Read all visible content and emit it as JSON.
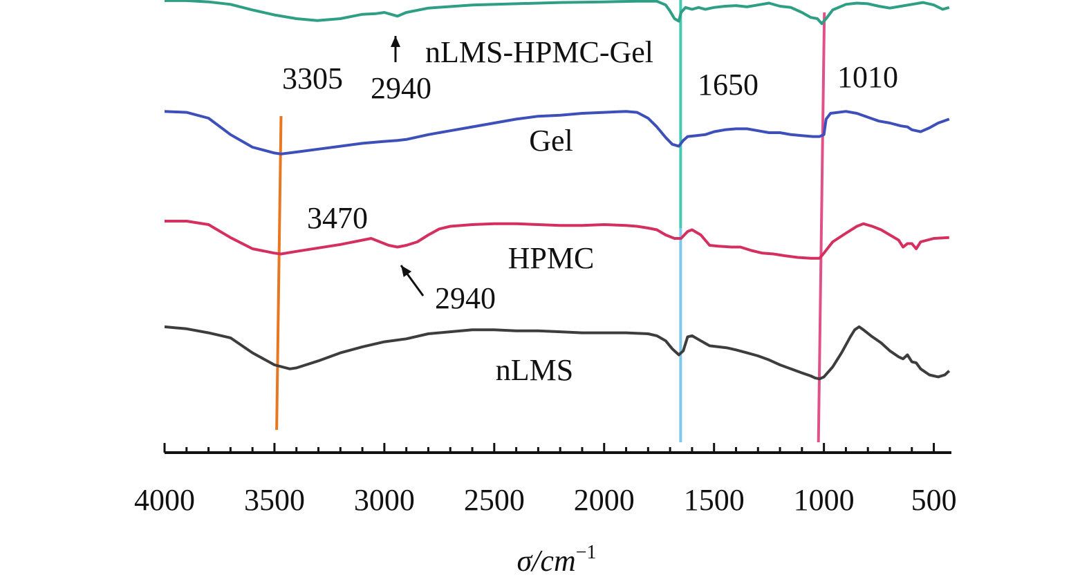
{
  "chart_data": {
    "type": "line",
    "title": "",
    "xlabel": "σ/cm",
    "xlabel_superscript": "−1",
    "ylabel": "",
    "xlim": [
      4000,
      420
    ],
    "x_reversed": true,
    "x_ticks": [
      4000,
      3500,
      3000,
      2500,
      2000,
      1500,
      1000,
      500
    ],
    "x_tick_labels": [
      "4000",
      "3500",
      "3000",
      "2500",
      "2000",
      "1500",
      "1000",
      "500"
    ],
    "y_axis_visible": false,
    "grid": false,
    "series": [
      {
        "name": "nLMS-HPMC-Gel",
        "color": "#2e9e84",
        "points": [
          [
            4000,
            0.99
          ],
          [
            3900,
            0.99
          ],
          [
            3800,
            0.97
          ],
          [
            3700,
            0.93
          ],
          [
            3600,
            0.84
          ],
          [
            3500,
            0.76
          ],
          [
            3400,
            0.7
          ],
          [
            3305,
            0.67
          ],
          [
            3200,
            0.7
          ],
          [
            3100,
            0.77
          ],
          [
            3040,
            0.78
          ],
          [
            3000,
            0.8
          ],
          [
            2970,
            0.77
          ],
          [
            2940,
            0.74
          ],
          [
            2900,
            0.8
          ],
          [
            2800,
            0.87
          ],
          [
            2600,
            0.92
          ],
          [
            2400,
            0.94
          ],
          [
            2200,
            0.96
          ],
          [
            2000,
            0.97
          ],
          [
            1850,
            0.98
          ],
          [
            1760,
            0.98
          ],
          [
            1720,
            0.92
          ],
          [
            1700,
            0.82
          ],
          [
            1680,
            0.7
          ],
          [
            1660,
            0.66
          ],
          [
            1650,
            0.8
          ],
          [
            1630,
            0.88
          ],
          [
            1600,
            0.85
          ],
          [
            1570,
            0.88
          ],
          [
            1540,
            0.85
          ],
          [
            1500,
            0.88
          ],
          [
            1450,
            0.9
          ],
          [
            1400,
            0.91
          ],
          [
            1350,
            0.89
          ],
          [
            1300,
            0.92
          ],
          [
            1250,
            0.95
          ],
          [
            1200,
            0.9
          ],
          [
            1150,
            0.88
          ],
          [
            1100,
            0.8
          ],
          [
            1060,
            0.72
          ],
          [
            1030,
            0.7
          ],
          [
            1010,
            0.62
          ],
          [
            990,
            0.7
          ],
          [
            960,
            0.84
          ],
          [
            900,
            0.93
          ],
          [
            850,
            0.95
          ],
          [
            800,
            0.94
          ],
          [
            750,
            0.9
          ],
          [
            700,
            0.87
          ],
          [
            650,
            0.9
          ],
          [
            600,
            0.93
          ],
          [
            550,
            0.96
          ],
          [
            500,
            0.92
          ],
          [
            460,
            0.85
          ],
          [
            430,
            0.88
          ]
        ]
      },
      {
        "name": "Gel",
        "color": "#3d4fb8",
        "points": [
          [
            4000,
            0.92
          ],
          [
            3900,
            0.91
          ],
          [
            3800,
            0.85
          ],
          [
            3700,
            0.68
          ],
          [
            3600,
            0.55
          ],
          [
            3500,
            0.49
          ],
          [
            3470,
            0.48
          ],
          [
            3400,
            0.5
          ],
          [
            3300,
            0.53
          ],
          [
            3200,
            0.56
          ],
          [
            3100,
            0.59
          ],
          [
            3000,
            0.61
          ],
          [
            2940,
            0.62
          ],
          [
            2900,
            0.63
          ],
          [
            2800,
            0.68
          ],
          [
            2700,
            0.72
          ],
          [
            2600,
            0.76
          ],
          [
            2500,
            0.8
          ],
          [
            2400,
            0.84
          ],
          [
            2300,
            0.87
          ],
          [
            2200,
            0.88
          ],
          [
            2100,
            0.9
          ],
          [
            2000,
            0.91
          ],
          [
            1900,
            0.92
          ],
          [
            1850,
            0.91
          ],
          [
            1800,
            0.85
          ],
          [
            1760,
            0.76
          ],
          [
            1720,
            0.65
          ],
          [
            1690,
            0.58
          ],
          [
            1660,
            0.56
          ],
          [
            1640,
            0.62
          ],
          [
            1620,
            0.66
          ],
          [
            1580,
            0.67
          ],
          [
            1540,
            0.68
          ],
          [
            1500,
            0.71
          ],
          [
            1450,
            0.73
          ],
          [
            1400,
            0.74
          ],
          [
            1350,
            0.74
          ],
          [
            1300,
            0.72
          ],
          [
            1250,
            0.7
          ],
          [
            1200,
            0.7
          ],
          [
            1150,
            0.68
          ],
          [
            1100,
            0.67
          ],
          [
            1050,
            0.66
          ],
          [
            1020,
            0.66
          ],
          [
            1000,
            0.68
          ],
          [
            990,
            0.84
          ],
          [
            970,
            0.9
          ],
          [
            900,
            0.92
          ],
          [
            850,
            0.9
          ],
          [
            800,
            0.86
          ],
          [
            750,
            0.82
          ],
          [
            700,
            0.8
          ],
          [
            650,
            0.77
          ],
          [
            620,
            0.76
          ],
          [
            600,
            0.73
          ],
          [
            560,
            0.71
          ],
          [
            520,
            0.75
          ],
          [
            480,
            0.8
          ],
          [
            430,
            0.84
          ]
        ]
      },
      {
        "name": "HPMC",
        "color": "#d42f5f",
        "points": [
          [
            4000,
            0.92
          ],
          [
            3900,
            0.92
          ],
          [
            3800,
            0.88
          ],
          [
            3700,
            0.73
          ],
          [
            3600,
            0.6
          ],
          [
            3500,
            0.55
          ],
          [
            3470,
            0.54
          ],
          [
            3400,
            0.57
          ],
          [
            3300,
            0.61
          ],
          [
            3200,
            0.65
          ],
          [
            3100,
            0.7
          ],
          [
            3060,
            0.72
          ],
          [
            3020,
            0.68
          ],
          [
            2980,
            0.64
          ],
          [
            2940,
            0.62
          ],
          [
            2900,
            0.64
          ],
          [
            2850,
            0.68
          ],
          [
            2800,
            0.76
          ],
          [
            2750,
            0.83
          ],
          [
            2700,
            0.86
          ],
          [
            2600,
            0.88
          ],
          [
            2500,
            0.89
          ],
          [
            2400,
            0.89
          ],
          [
            2300,
            0.88
          ],
          [
            2200,
            0.87
          ],
          [
            2100,
            0.87
          ],
          [
            2000,
            0.88
          ],
          [
            1900,
            0.87
          ],
          [
            1850,
            0.86
          ],
          [
            1800,
            0.84
          ],
          [
            1760,
            0.82
          ],
          [
            1720,
            0.76
          ],
          [
            1680,
            0.72
          ],
          [
            1650,
            0.72
          ],
          [
            1620,
            0.8
          ],
          [
            1600,
            0.82
          ],
          [
            1560,
            0.76
          ],
          [
            1520,
            0.64
          ],
          [
            1480,
            0.63
          ],
          [
            1420,
            0.62
          ],
          [
            1380,
            0.62
          ],
          [
            1330,
            0.58
          ],
          [
            1280,
            0.55
          ],
          [
            1230,
            0.54
          ],
          [
            1180,
            0.52
          ],
          [
            1120,
            0.5
          ],
          [
            1060,
            0.49
          ],
          [
            1020,
            0.49
          ],
          [
            1000,
            0.55
          ],
          [
            960,
            0.68
          ],
          [
            900,
            0.78
          ],
          [
            850,
            0.86
          ],
          [
            820,
            0.89
          ],
          [
            780,
            0.86
          ],
          [
            740,
            0.82
          ],
          [
            700,
            0.76
          ],
          [
            660,
            0.7
          ],
          [
            640,
            0.62
          ],
          [
            620,
            0.66
          ],
          [
            600,
            0.66
          ],
          [
            580,
            0.6
          ],
          [
            560,
            0.68
          ],
          [
            500,
            0.72
          ],
          [
            430,
            0.73
          ]
        ]
      },
      {
        "name": "nLMS",
        "color": "#3d3d3d",
        "points": [
          [
            4000,
            0.98
          ],
          [
            3900,
            0.96
          ],
          [
            3800,
            0.92
          ],
          [
            3700,
            0.87
          ],
          [
            3600,
            0.72
          ],
          [
            3500,
            0.6
          ],
          [
            3430,
            0.56
          ],
          [
            3400,
            0.57
          ],
          [
            3300,
            0.64
          ],
          [
            3200,
            0.72
          ],
          [
            3100,
            0.78
          ],
          [
            3000,
            0.83
          ],
          [
            2900,
            0.86
          ],
          [
            2800,
            0.91
          ],
          [
            2700,
            0.93
          ],
          [
            2600,
            0.95
          ],
          [
            2500,
            0.95
          ],
          [
            2400,
            0.94
          ],
          [
            2300,
            0.94
          ],
          [
            2200,
            0.93
          ],
          [
            2100,
            0.92
          ],
          [
            2000,
            0.92
          ],
          [
            1900,
            0.92
          ],
          [
            1800,
            0.91
          ],
          [
            1760,
            0.89
          ],
          [
            1720,
            0.84
          ],
          [
            1690,
            0.76
          ],
          [
            1660,
            0.7
          ],
          [
            1640,
            0.74
          ],
          [
            1620,
            0.88
          ],
          [
            1600,
            0.89
          ],
          [
            1560,
            0.84
          ],
          [
            1520,
            0.79
          ],
          [
            1480,
            0.78
          ],
          [
            1440,
            0.77
          ],
          [
            1400,
            0.75
          ],
          [
            1350,
            0.72
          ],
          [
            1300,
            0.69
          ],
          [
            1250,
            0.65
          ],
          [
            1200,
            0.6
          ],
          [
            1150,
            0.56
          ],
          [
            1100,
            0.52
          ],
          [
            1060,
            0.49
          ],
          [
            1040,
            0.47
          ],
          [
            1020,
            0.46
          ],
          [
            1000,
            0.48
          ],
          [
            960,
            0.58
          ],
          [
            920,
            0.72
          ],
          [
            880,
            0.88
          ],
          [
            860,
            0.95
          ],
          [
            840,
            0.98
          ],
          [
            820,
            0.95
          ],
          [
            780,
            0.88
          ],
          [
            740,
            0.82
          ],
          [
            700,
            0.74
          ],
          [
            660,
            0.68
          ],
          [
            640,
            0.66
          ],
          [
            620,
            0.7
          ],
          [
            600,
            0.63
          ],
          [
            580,
            0.62
          ],
          [
            560,
            0.56
          ],
          [
            520,
            0.5
          ],
          [
            480,
            0.48
          ],
          [
            450,
            0.5
          ],
          [
            430,
            0.54
          ]
        ]
      }
    ],
    "series_labels": [
      {
        "series": "nLMS-HPMC-Gel",
        "text": "nLMS-HPMC-Gel",
        "x": 2300
      },
      {
        "series": "Gel",
        "text": "Gel",
        "x": 2200
      },
      {
        "series": "HPMC",
        "text": "HPMC",
        "x": 2200
      },
      {
        "series": "nLMS",
        "text": "nLMS",
        "x": 2200
      }
    ],
    "reference_lines": [
      {
        "label": "3470",
        "x_top": 3470,
        "x_bottom": 3490,
        "color": "#e87722"
      },
      {
        "label": "1650",
        "x_top": 1652,
        "x_bottom": 1652,
        "color": "#43c9b1",
        "color_lower": "#7ec8ea"
      },
      {
        "label": "1010",
        "x_top": 998,
        "x_bottom": 1025,
        "color": "#e0518a"
      }
    ],
    "annotations": [
      {
        "text": "3305",
        "x": 3305,
        "series": "nLMS-HPMC-Gel"
      },
      {
        "text": "2940",
        "x": 2940,
        "series": "nLMS-HPMC-Gel",
        "arrow": true
      },
      {
        "text": "1650",
        "x": 1650,
        "series": "nLMS-HPMC-Gel"
      },
      {
        "text": "1010",
        "x": 1010,
        "series": "nLMS-HPMC-Gel"
      },
      {
        "text": "3470",
        "x": 3470,
        "series": "Gel"
      },
      {
        "text": "2940",
        "x": 2940,
        "series": "HPMC",
        "arrow": true
      }
    ]
  }
}
